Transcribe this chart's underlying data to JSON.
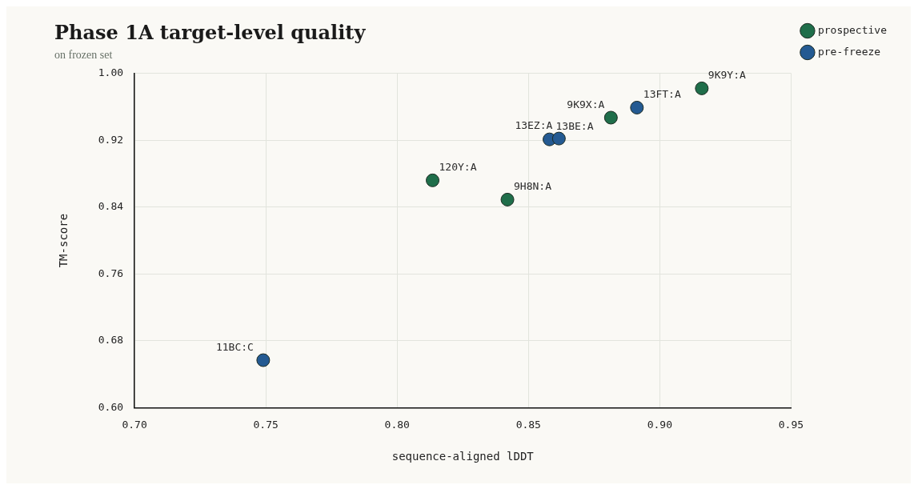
{
  "chart_data": {
    "type": "scatter",
    "title": "Phase 1A target-level quality",
    "subtitle": "on frozen set",
    "xlabel": "sequence-aligned lDDT",
    "ylabel": "TM-score",
    "series": [
      {
        "name": "prospective",
        "color": "#1f6e4a",
        "x": [
          0.8135,
          0.842,
          0.8814,
          0.916
        ],
        "values": [
          0.872,
          0.849,
          0.947,
          0.982
        ]
      },
      {
        "name": "pre-freeze",
        "color": "#245a92",
        "x": [
          0.749,
          0.858,
          0.8616,
          0.8913
        ],
        "values": [
          0.657,
          0.921,
          0.922,
          0.959
        ]
      }
    ],
    "annotations": [
      {
        "text": "11BC:C",
        "x": 0.749,
        "y": 0.657
      },
      {
        "text": "120Y:A",
        "x": 0.8135,
        "y": 0.872
      },
      {
        "text": "9H8N:A",
        "x": 0.842,
        "y": 0.849
      },
      {
        "text": "13BE:A",
        "x": 0.858,
        "y": 0.921
      },
      {
        "text": "13EZ:A",
        "x": 0.8616,
        "y": 0.922
      },
      {
        "text": "9K9X:A",
        "x": 0.8814,
        "y": 0.947
      },
      {
        "text": "13FT:A",
        "x": 0.8913,
        "y": 0.959
      },
      {
        "text": "9K9Y:A",
        "x": 0.916,
        "y": 0.982
      }
    ],
    "xlim": [
      0.7,
      0.95
    ],
    "xticks": [
      {
        "value": 0.7,
        "label": "0.70"
      },
      {
        "value": 0.75,
        "label": "0.75"
      },
      {
        "value": 0.8,
        "label": "0.80"
      },
      {
        "value": 0.85,
        "label": "0.85"
      },
      {
        "value": 0.9,
        "label": "0.90"
      },
      {
        "value": 0.95,
        "label": "0.95"
      }
    ],
    "ylim": [
      0.6,
      1.0
    ],
    "yticks": [
      {
        "value": 0.6,
        "label": "0.60"
      },
      {
        "value": 0.68,
        "label": "0.68"
      },
      {
        "value": 0.76,
        "label": "0.76"
      },
      {
        "value": 0.84,
        "label": "0.84"
      },
      {
        "value": 0.92,
        "label": "0.92"
      },
      {
        "value": 1.0,
        "label": "1.00"
      }
    ],
    "grid": true,
    "legend": "top right",
    "marker": "circle"
  }
}
